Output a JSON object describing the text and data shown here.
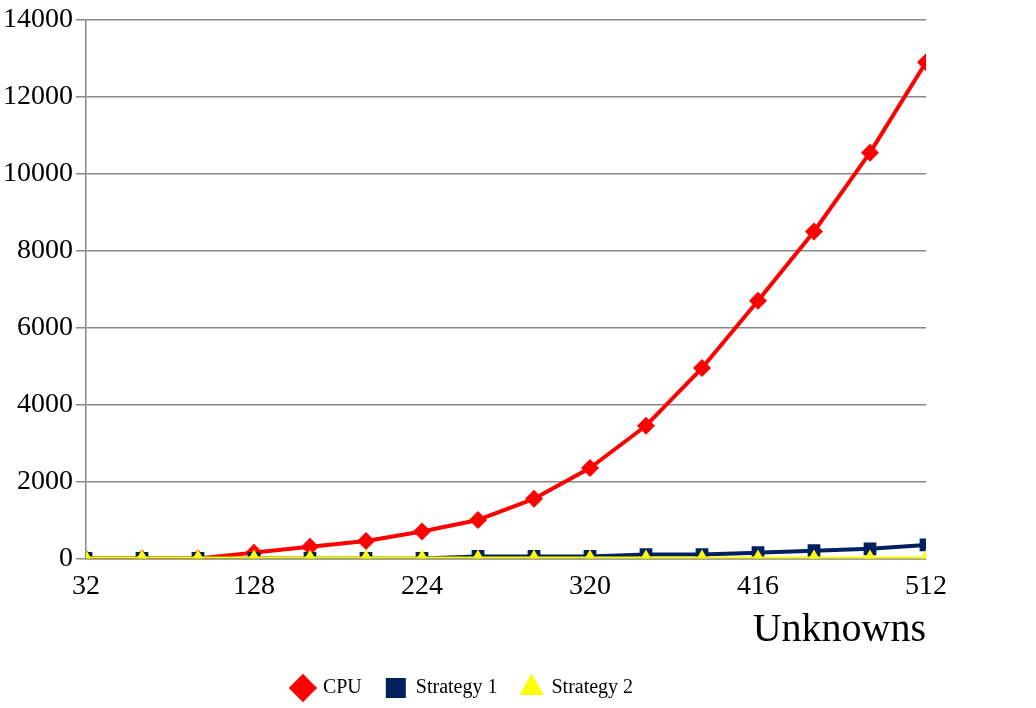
{
  "chart_data": {
    "type": "line",
    "xlabel": "Unknowns",
    "x": [
      32,
      64,
      96,
      128,
      160,
      192,
      224,
      256,
      288,
      320,
      352,
      384,
      416,
      448,
      480,
      512
    ],
    "xlim": [
      32,
      512
    ],
    "xticks": [
      32,
      128,
      224,
      320,
      416,
      512
    ],
    "ylim": [
      0,
      14000
    ],
    "yticks": [
      0,
      2000,
      4000,
      6000,
      8000,
      10000,
      12000,
      14000
    ],
    "grid": "y",
    "legend": "bottom",
    "line_style": "solid",
    "series": [
      {
        "name": "CPU",
        "color": "#ff0000",
        "marker": "diamond",
        "values": [
          0,
          0,
          0,
          150,
          300,
          450,
          700,
          1000,
          1550,
          2350,
          3450,
          4950,
          6700,
          8500,
          10550,
          12900
        ]
      },
      {
        "name": "Strategy 1",
        "color": "#002060",
        "marker": "square",
        "values": [
          0,
          0,
          0,
          0,
          0,
          0,
          0,
          50,
          50,
          50,
          100,
          100,
          150,
          200,
          250,
          350
        ]
      },
      {
        "name": "Strategy 2",
        "color": "#ffff00",
        "marker": "triangle",
        "values": [
          0,
          0,
          0,
          0,
          0,
          0,
          0,
          0,
          0,
          0,
          0,
          0,
          0,
          0,
          0,
          0
        ]
      }
    ]
  }
}
